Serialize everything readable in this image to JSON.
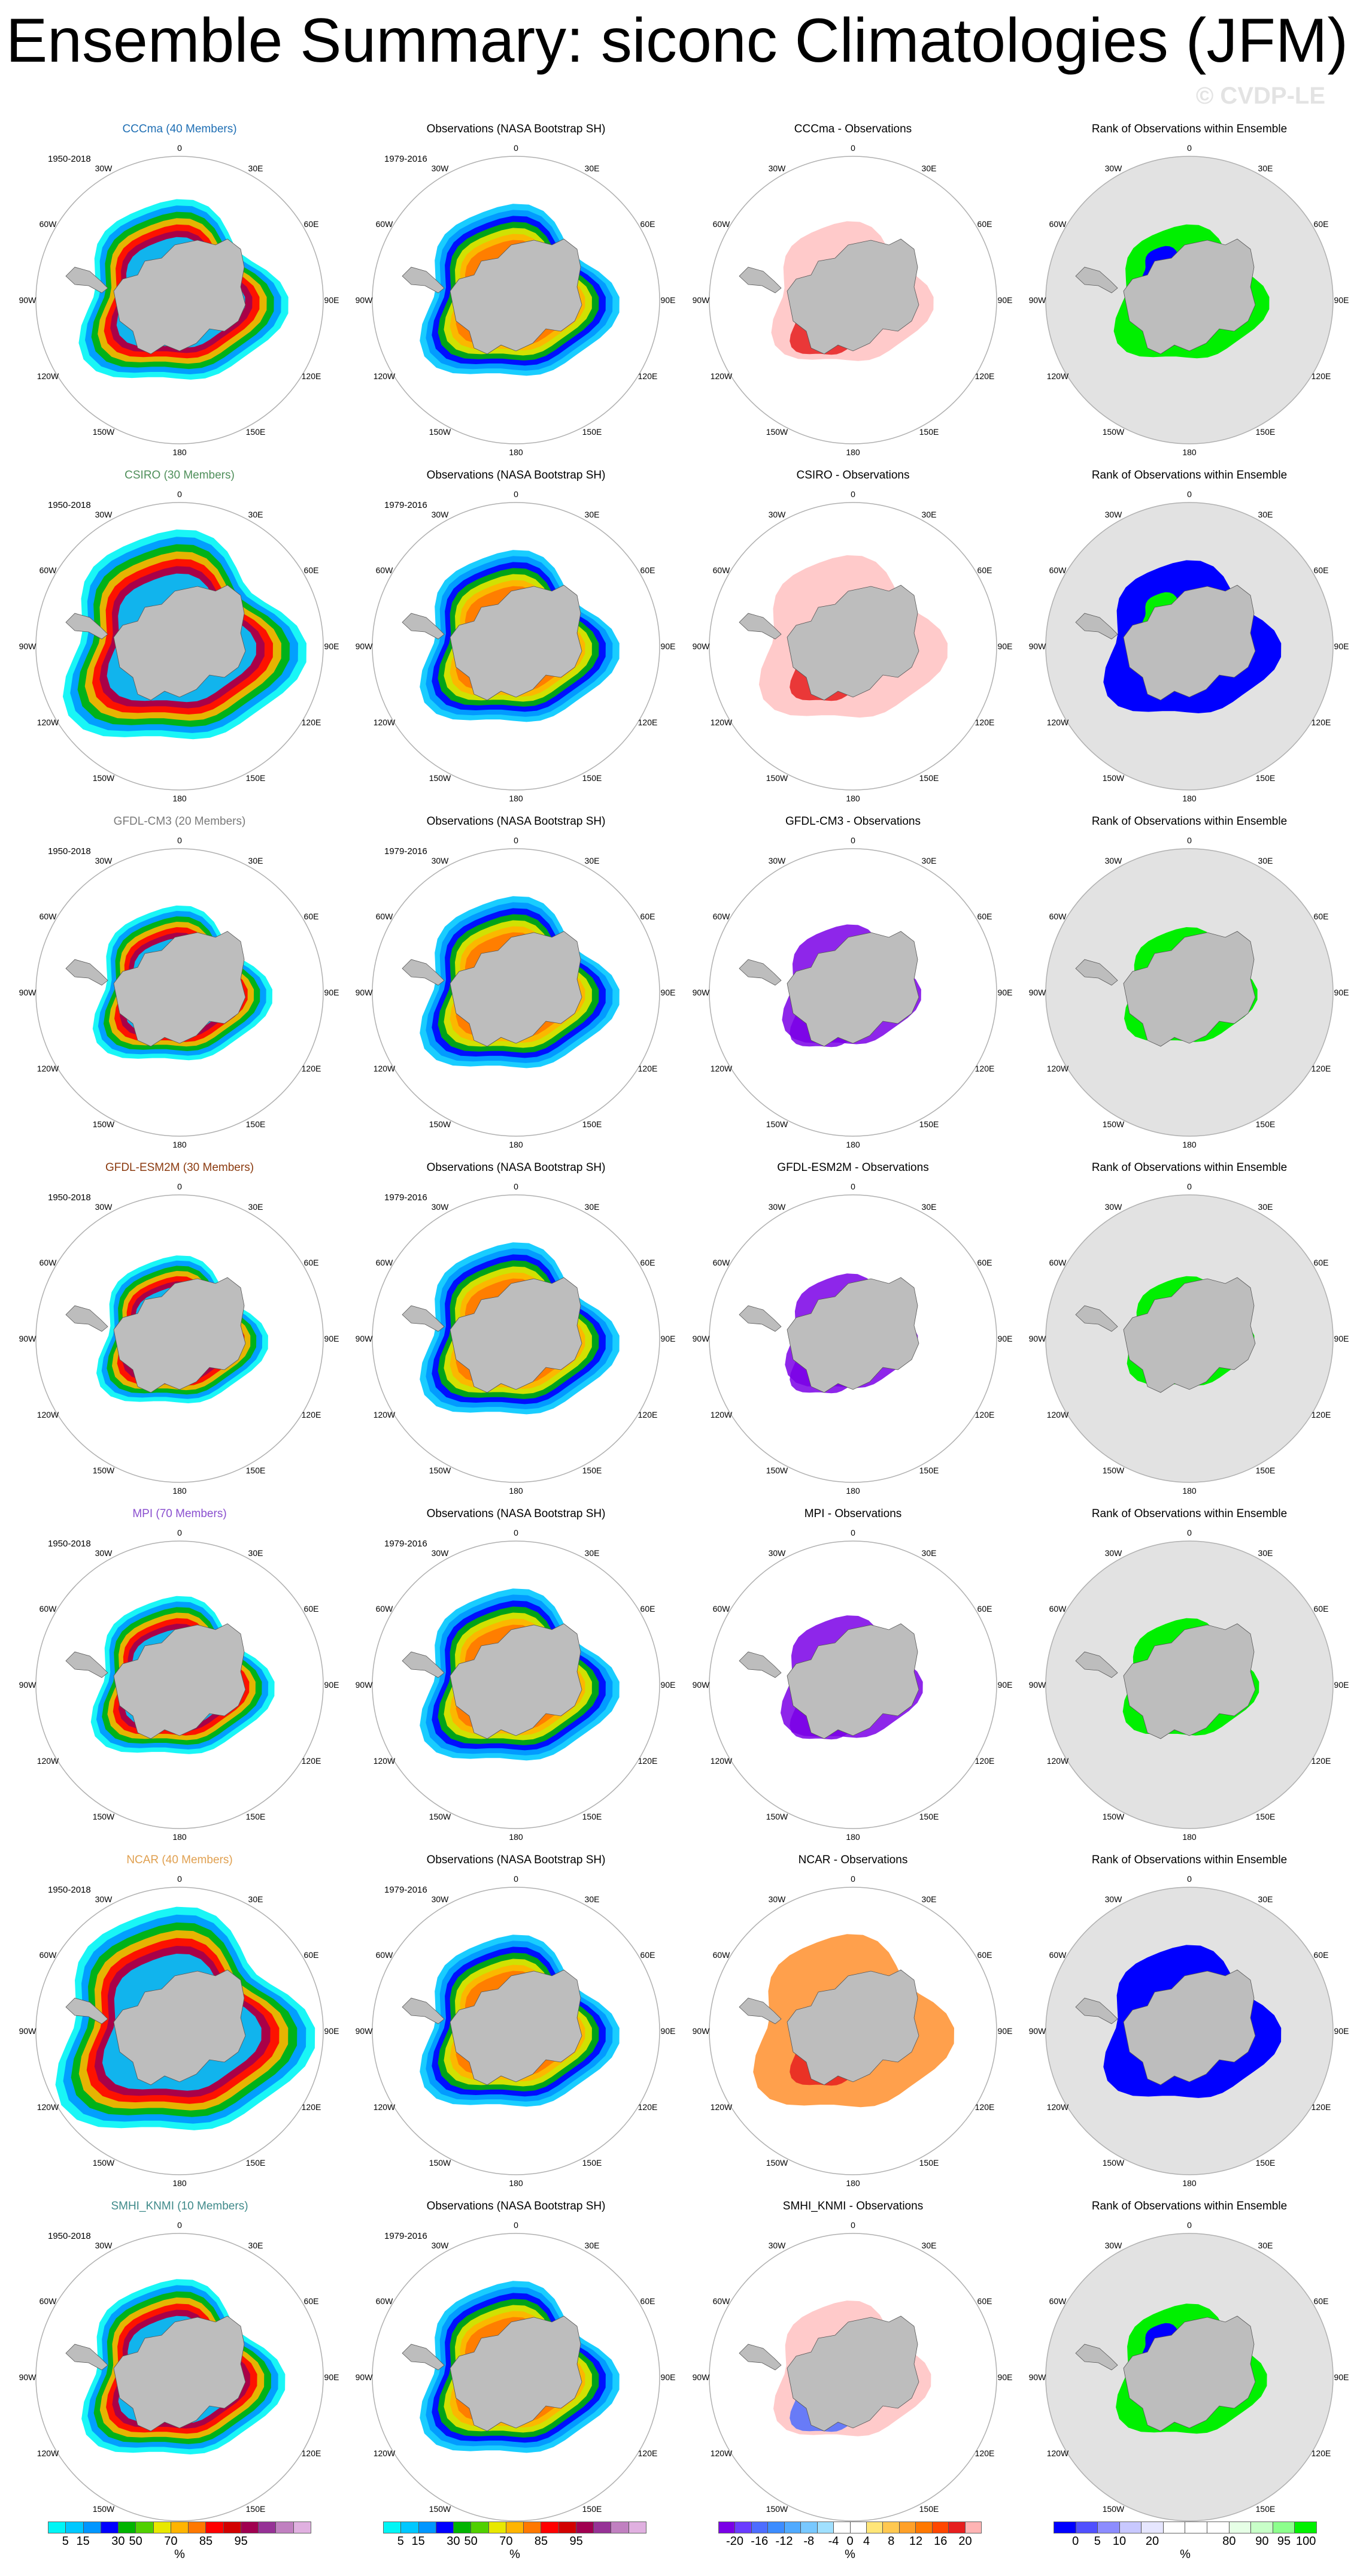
{
  "title": "Ensemble Summary: siconc Climatologies (JFM)",
  "watermark": "© CVDP-LE",
  "map_labels": {
    "lon": [
      "0",
      "30E",
      "60E",
      "90E",
      "120E",
      "150E",
      "180",
      "150W",
      "120W",
      "90W",
      "60W",
      "30W"
    ]
  },
  "columns": {
    "obs_title": "Observations (NASA Bootstrap SH)",
    "obs_years": "1979-2016",
    "diff_suffix": " - Observations",
    "rank_title": "Rank of Observations within Ensemble"
  },
  "rows": [
    {
      "model": "CCCma (40 Members)",
      "diff_title": "CCCma - Observations",
      "years": "1950-2018",
      "color": "#1f6fb4",
      "ext": 1.05,
      "diff": "cccma",
      "rank": "cccma"
    },
    {
      "model": "CSIRO (30 Members)",
      "diff_title": "CSIRO - Observations",
      "years": "1950-2018",
      "color": "#4f8f5a",
      "ext": 1.22,
      "diff": "csiro",
      "rank": "csiro"
    },
    {
      "model": "GFDL-CM3 (20 Members)",
      "diff_title": "GFDL-CM3 - Observations",
      "years": "1950-2018",
      "color": "#7a7a7a",
      "ext": 0.9,
      "diff": "neg",
      "rank": "green"
    },
    {
      "model": "GFDL-ESM2M (30 Members)",
      "diff_title": "GFDL-ESM2M - Observations",
      "years": "1950-2018",
      "color": "#8b3a0f",
      "ext": 0.86,
      "diff": "neg",
      "rank": "green"
    },
    {
      "model": "MPI (70 Members)",
      "diff_title": "MPI - Observations",
      "years": "1950-2018",
      "color": "#8a4fcf",
      "ext": 0.92,
      "diff": "neg",
      "rank": "green"
    },
    {
      "model": "NCAR (40 Members)",
      "diff_title": "NCAR - Observations",
      "years": "1950-2018",
      "color": "#e0a050",
      "ext": 1.3,
      "diff": "ncar",
      "rank": "ncar"
    },
    {
      "model": "SMHI_KNMI (10 Members)",
      "diff_title": "SMHI_KNMI - Observations",
      "years": "1950-2018",
      "color": "#3f8a8a",
      "ext": 1.02,
      "diff": "smhi",
      "rank": "smhi"
    }
  ],
  "colorbars": [
    {
      "colors": [
        "#00f5f5",
        "#00c8ff",
        "#0096ff",
        "#0000ff",
        "#00b400",
        "#50d000",
        "#e8e800",
        "#ffb400",
        "#ff7800",
        "#ff0000",
        "#d20000",
        "#a00050",
        "#963296",
        "#c080c0",
        "#e0b0e0"
      ],
      "labels": [
        "5",
        "15",
        "30",
        "50",
        "70",
        "85",
        "95"
      ],
      "label_pos": [
        1,
        2,
        4,
        5,
        7,
        9,
        11
      ],
      "unit": "%"
    },
    {
      "colors": [
        "#00f5f5",
        "#00c8ff",
        "#0096ff",
        "#0000ff",
        "#00b400",
        "#50d000",
        "#e8e800",
        "#ffb400",
        "#ff7800",
        "#ff0000",
        "#d20000",
        "#a00050",
        "#963296",
        "#c080c0",
        "#e0b0e0"
      ],
      "labels": [
        "5",
        "15",
        "30",
        "50",
        "70",
        "85",
        "95"
      ],
      "label_pos": [
        1,
        2,
        4,
        5,
        7,
        9,
        11
      ],
      "unit": "%"
    },
    {
      "colors": [
        "#7a00e6",
        "#6a3cff",
        "#4d6dff",
        "#3c8cff",
        "#50aaff",
        "#78c8ff",
        "#a0e0ff",
        "#ffffff",
        "#ffffff",
        "#ffe678",
        "#ffc850",
        "#ffa028",
        "#ff7800",
        "#ff4600",
        "#e61e1e",
        "#ffb4b4"
      ],
      "labels": [
        "-20",
        "-16",
        "-12",
        "-8",
        "-4",
        "0",
        "4",
        "8",
        "12",
        "16",
        "20"
      ],
      "label_pos": [
        1,
        2.5,
        4,
        5.5,
        7,
        8,
        9,
        10.5,
        12,
        13.5,
        15
      ],
      "unit": "%"
    },
    {
      "colors": [
        "#0000ff",
        "#5050ff",
        "#8c8cff",
        "#c8c8ff",
        "#e6e6ff",
        "#ffffff",
        "#ffffff",
        "#ffffff",
        "#e6ffe6",
        "#c8ffc8",
        "#8cff8c",
        "#00f000"
      ],
      "labels": [
        "0",
        "5",
        "10",
        "20",
        "80",
        "90",
        "95",
        "100"
      ],
      "label_pos": [
        1,
        2,
        3,
        4.5,
        8,
        9.5,
        10.5,
        11.5
      ],
      "unit": "%"
    }
  ]
}
